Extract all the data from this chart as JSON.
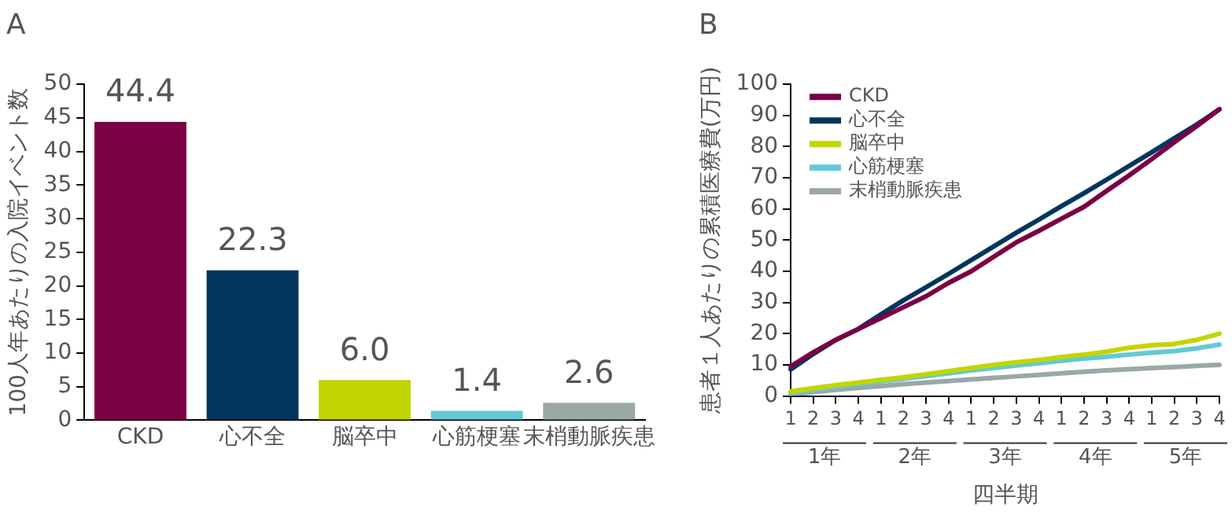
{
  "chart_data": [
    {
      "type": "bar",
      "title": "A",
      "ylabel": "100人年あたりの入院イベント数",
      "categories": [
        "CKD",
        "心不全",
        "脳卒中",
        "心筋梗塞",
        "末梢動脈疾患"
      ],
      "values": [
        44.4,
        22.3,
        6.0,
        1.4,
        2.6
      ],
      "value_labels": [
        "44.4",
        "22.3",
        "6.0",
        "1.4",
        "2.6"
      ],
      "colors": [
        "#7b0046",
        "#00365e",
        "#c3d500",
        "#63c9d6",
        "#9aa8a6"
      ],
      "ylim": [
        0,
        50
      ],
      "yticks": [
        0,
        5,
        10,
        15,
        20,
        25,
        30,
        35,
        40,
        45,
        50
      ],
      "grid": false,
      "legend": false
    },
    {
      "type": "line",
      "title": "B",
      "xlabel": "四半期",
      "ylabel": "患者１人あたりの累積医療費(万円)",
      "categories": [
        "1",
        "2",
        "3",
        "4",
        "1",
        "2",
        "3",
        "4",
        "1",
        "2",
        "3",
        "4",
        "1",
        "2",
        "3",
        "4",
        "1",
        "2",
        "3",
        "4"
      ],
      "annotations": [
        "1年",
        "2年",
        "3年",
        "4年",
        "5年"
      ],
      "ylim": [
        0,
        100
      ],
      "yticks": [
        0,
        10,
        20,
        30,
        40,
        50,
        60,
        70,
        80,
        90,
        100
      ],
      "grid": false,
      "legend": "top left",
      "marker": "none",
      "line_style": "solid",
      "series": [
        {
          "name": "CKD",
          "color": "#7b0046",
          "values": [
            9.5,
            14,
            18,
            21.5,
            25,
            28.5,
            32,
            36.3,
            40,
            44.7,
            49.3,
            53,
            56.9,
            60.7,
            65.8,
            70.8,
            76,
            81.4,
            86.6,
            92
          ]
        },
        {
          "name": "心不全",
          "color": "#00365e",
          "values": [
            8.5,
            13.5,
            18,
            21.5,
            26.2,
            30.7,
            34.9,
            39.2,
            43.6,
            48,
            52.4,
            56.6,
            60.9,
            65.1,
            69.4,
            73.8,
            78.2,
            82.7,
            87.1,
            92
          ]
        },
        {
          "name": "脳卒中",
          "color": "#c3d500",
          "values": [
            1.5,
            2.5,
            3.5,
            4.3,
            5.2,
            6,
            7,
            8,
            9,
            10,
            10.8,
            11.6,
            12.5,
            13.3,
            14.2,
            15.5,
            16.3,
            16.7,
            18,
            20
          ]
        },
        {
          "name": "心筋梗塞",
          "color": "#63c9d6",
          "values": [
            1,
            2,
            3,
            3.8,
            4.7,
            5.5,
            6.4,
            7.3,
            8.2,
            9,
            9.8,
            10.5,
            11.3,
            12,
            12.6,
            13.3,
            13.9,
            14.4,
            15.3,
            16.5
          ]
        },
        {
          "name": "末梢動脈疾患",
          "color": "#9aa8a6",
          "values": [
            0.5,
            1.3,
            2,
            2.6,
            3.2,
            3.8,
            4.3,
            4.8,
            5.3,
            5.8,
            6.3,
            6.8,
            7.3,
            7.8,
            8.2,
            8.6,
            9,
            9.3,
            9.7,
            10
          ]
        }
      ]
    }
  ]
}
